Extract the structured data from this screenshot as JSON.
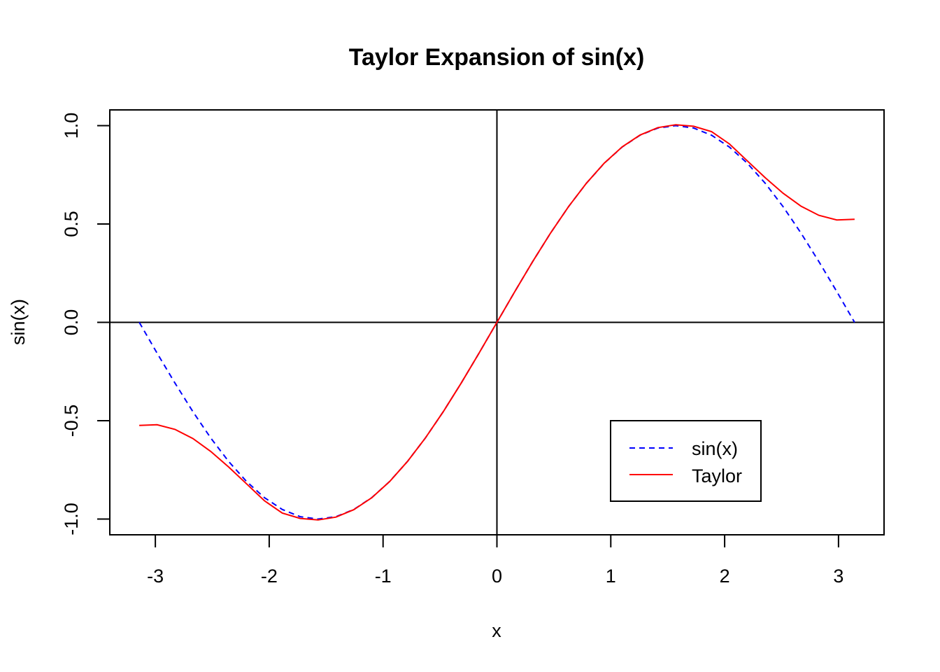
{
  "chart_data": {
    "type": "line",
    "title": "Taylor Expansion of sin(x)",
    "xlabel": "x",
    "ylabel": "sin(x)",
    "xlim": [
      -3.4,
      3.4
    ],
    "ylim": [
      -1.08,
      1.08
    ],
    "x_ticks": [
      -3,
      -2,
      -1,
      0,
      1,
      2,
      3
    ],
    "x_tick_labels": [
      "-3",
      "-2",
      "-1",
      "0",
      "1",
      "2",
      "3"
    ],
    "y_ticks": [
      -1.0,
      -0.5,
      0.0,
      0.5,
      1.0
    ],
    "y_tick_labels": [
      "-1.0",
      "-0.5",
      "0.0",
      "0.5",
      "1.0"
    ],
    "reference_lines": {
      "horizontal": 0,
      "vertical": 0
    },
    "legend_position": "bottom-right",
    "grid": false,
    "series": [
      {
        "name": "sin(x)",
        "color": "#0000ff",
        "line_style": "dashed",
        "x": [
          -3.1416,
          -2.9845,
          -2.8274,
          -2.6704,
          -2.5133,
          -2.3562,
          -2.1991,
          -2.042,
          -1.885,
          -1.7279,
          -1.5708,
          -1.4137,
          -1.2566,
          -1.0996,
          -0.9425,
          -0.7854,
          -0.6283,
          -0.4712,
          -0.3142,
          -0.1571,
          0,
          0.1571,
          0.3142,
          0.4712,
          0.6283,
          0.7854,
          0.9425,
          1.0996,
          1.2566,
          1.4137,
          1.5708,
          1.7279,
          1.885,
          2.042,
          2.1991,
          2.3562,
          2.5133,
          2.6704,
          2.8274,
          2.9845,
          3.1416
        ],
        "y": [
          0,
          -0.1564,
          -0.309,
          -0.454,
          -0.5878,
          -0.7071,
          -0.809,
          -0.891,
          -0.9511,
          -0.9877,
          -1,
          -0.9877,
          -0.9511,
          -0.891,
          -0.809,
          -0.7071,
          -0.5878,
          -0.454,
          -0.309,
          -0.1564,
          0,
          0.1564,
          0.309,
          0.454,
          0.5878,
          0.7071,
          0.809,
          0.891,
          0.9511,
          0.9877,
          1,
          0.9877,
          0.9511,
          0.891,
          0.809,
          0.7071,
          0.5878,
          0.454,
          0.309,
          0.1564,
          0
        ]
      },
      {
        "name": "Taylor",
        "color": "#ff0000",
        "line_style": "solid",
        "x": [
          -3.1416,
          -2.9845,
          -2.8274,
          -2.6704,
          -2.5133,
          -2.3562,
          -2.1991,
          -2.042,
          -1.885,
          -1.7279,
          -1.5708,
          -1.4137,
          -1.2566,
          -1.0996,
          -0.9425,
          -0.7854,
          -0.6283,
          -0.4712,
          -0.3142,
          -0.1571,
          0,
          0.1571,
          0.3142,
          0.4712,
          0.6283,
          0.7854,
          0.9425,
          1.0996,
          1.2566,
          1.4137,
          1.5708,
          1.7279,
          1.885,
          2.042,
          2.1991,
          2.3562,
          2.5133,
          2.6704,
          2.8274,
          2.9845,
          3.1416
        ],
        "y": [
          -0.5241,
          -0.5207,
          -0.5441,
          -0.5908,
          -0.6562,
          -0.7351,
          -0.8211,
          -0.9071,
          -0.9692,
          -0.9969,
          -1.0045,
          -0.9898,
          -0.9521,
          -0.8916,
          -0.8092,
          -0.7071,
          -0.5878,
          -0.454,
          -0.309,
          -0.1564,
          0,
          0.1564,
          0.309,
          0.454,
          0.5878,
          0.7071,
          0.8092,
          0.8916,
          0.9521,
          0.9898,
          1.0045,
          0.9969,
          0.9692,
          0.9071,
          0.8211,
          0.7351,
          0.6562,
          0.5908,
          0.5441,
          0.5207,
          0.5241
        ]
      }
    ]
  }
}
